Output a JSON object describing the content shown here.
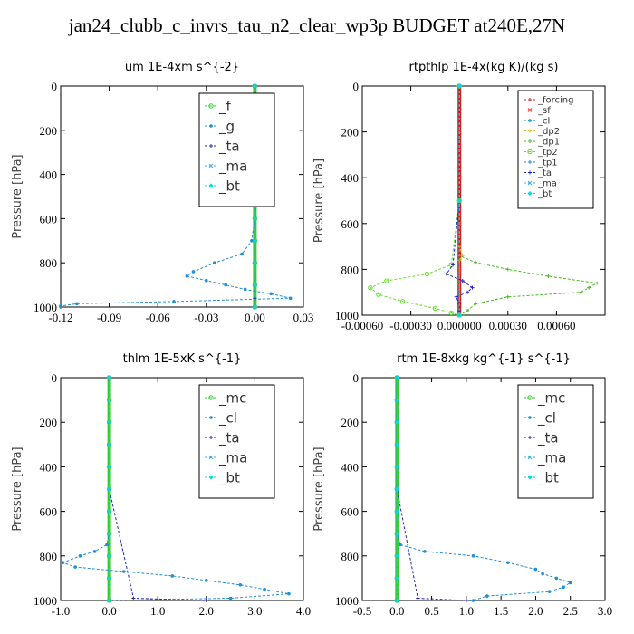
{
  "title": "jan24_clubb_c_invrs_tau_n2_clear_wp3p  BUDGET at240E,27N",
  "colors": {
    "_f": "#33cc33",
    "_g": "#1f8fd6",
    "_ta": "#2222cc",
    "_ma": "#44aadd",
    "_bt": "#00dddd",
    "_mc": "#33cc33",
    "_cl": "#1f8fd6",
    "_forcing": "#cc2222",
    "_sf": "#ee3322",
    "_dp2": "#eebb22",
    "_dp1": "#44bb22",
    "_tp2": "#66dd33",
    "_tp1": "#2288cc"
  },
  "chart_data": [
    {
      "type": "line",
      "title": "um   1E-4xm s^{-2}",
      "ylabel": "Pressure [hPa]",
      "ylim": [
        1000,
        0
      ],
      "xlim": [
        -0.12,
        0.03
      ],
      "xticks": [
        "-0.12",
        "-0.09",
        "-0.06",
        "-0.03",
        "0.00",
        "0.03"
      ],
      "xtick_values": [
        -0.12,
        -0.09,
        -0.06,
        -0.03,
        0.0,
        0.03
      ],
      "yticks": [
        0,
        200,
        400,
        600,
        800,
        1000
      ],
      "legend": [
        "_f",
        "_g",
        "_ta",
        "_ma",
        "_bt"
      ],
      "legend_position": "top-right",
      "series": [
        {
          "name": "_f",
          "pressure": [
            0,
            100,
            200,
            300,
            400,
            500,
            600,
            700,
            800,
            900,
            1000
          ],
          "values": [
            0,
            0,
            0,
            0,
            0,
            0,
            0,
            0,
            0,
            0,
            0
          ]
        },
        {
          "name": "_g",
          "pressure": [
            0,
            100,
            200,
            300,
            400,
            500,
            600,
            700,
            760,
            800,
            840,
            860,
            880,
            900,
            920,
            940,
            960,
            975,
            985,
            995,
            1000
          ],
          "values": [
            0,
            0.001,
            0,
            0.001,
            0,
            0.001,
            0,
            -0.002,
            -0.008,
            -0.025,
            -0.038,
            -0.042,
            -0.03,
            -0.018,
            -0.006,
            0.01,
            0.022,
            -0.05,
            -0.11,
            -0.12,
            -0.12
          ]
        },
        {
          "name": "_ta",
          "pressure": [
            0,
            500,
            900,
            960,
            1000
          ],
          "values": [
            0,
            0,
            0,
            0,
            0
          ]
        },
        {
          "name": "_ma",
          "pressure": [
            0,
            500,
            1000
          ],
          "values": [
            0,
            0,
            0
          ]
        },
        {
          "name": "_bt",
          "pressure": [
            0,
            100,
            200,
            300,
            400,
            500,
            600,
            700,
            800,
            900,
            1000
          ],
          "values": [
            0,
            0,
            0,
            0,
            0,
            0,
            0,
            0,
            0,
            0,
            0
          ]
        }
      ]
    },
    {
      "type": "line",
      "title": "rtpthlp   1E-4x(kg K)/(kg s)",
      "ylabel": "Pressure [hPa]",
      "ylim": [
        1000,
        0
      ],
      "xlim": [
        -0.0006,
        0.0009
      ],
      "xticks": [
        "-0.00060",
        "-0.00030",
        "0.000000",
        "0.00030",
        "0.00060"
      ],
      "xtick_values": [
        -0.0006,
        -0.0003,
        0.0,
        0.0003,
        0.0006
      ],
      "yticks": [
        0,
        200,
        400,
        600,
        800,
        1000
      ],
      "legend": [
        "_forcing",
        "_sf",
        "_cl",
        "_dp2",
        "_dp1",
        "_tp2",
        "_tp1",
        "_ta",
        "_ma",
        "_bt"
      ],
      "legend_position": "top-right",
      "series": [
        {
          "name": "_forcing",
          "pressure": [
            0,
            100,
            200,
            300,
            400,
            500,
            600,
            700,
            800,
            900,
            1000
          ],
          "values": [
            0,
            0,
            0,
            0,
            0,
            0,
            0,
            0,
            0,
            0,
            0
          ]
        },
        {
          "name": "_sf",
          "pressure": [
            0,
            200,
            400,
            600,
            800,
            1000
          ],
          "values": [
            0,
            0,
            0,
            0,
            0,
            0
          ]
        },
        {
          "name": "_cl",
          "pressure": [
            0,
            500,
            1000
          ],
          "values": [
            0,
            0,
            0
          ]
        },
        {
          "name": "_dp2",
          "pressure": [
            0,
            500,
            700,
            740,
            760,
            1000
          ],
          "values": [
            0,
            0,
            0,
            2e-05,
            0,
            0
          ]
        },
        {
          "name": "_dp1",
          "pressure": [
            0,
            500,
            740,
            770,
            800,
            830,
            860,
            880,
            900,
            920,
            950,
            980,
            1000
          ],
          "values": [
            0,
            0,
            0,
            0.0001,
            0.0003,
            0.00055,
            0.00085,
            0.0008,
            0.00075,
            0.0003,
            0.0001,
            5e-05,
            0
          ]
        },
        {
          "name": "_tp2",
          "pressure": [
            0,
            500,
            780,
            820,
            850,
            880,
            910,
            940,
            970,
            990,
            1000
          ],
          "values": [
            0,
            0,
            -5e-05,
            -0.0002,
            -0.00045,
            -0.00055,
            -0.0005,
            -0.00035,
            -0.00015,
            -5e-05,
            0
          ]
        },
        {
          "name": "_tp1",
          "pressure": [
            0,
            500,
            1000
          ],
          "values": [
            0,
            0,
            0
          ]
        },
        {
          "name": "_ta",
          "pressure": [
            0,
            500,
            780,
            820,
            850,
            880,
            900,
            920,
            950,
            980,
            1000
          ],
          "values": [
            0,
            0,
            -4e-05,
            -8e-05,
            2e-05,
            8e-05,
            5e-05,
            -2e-05,
            0,
            0,
            0
          ]
        },
        {
          "name": "_ma",
          "pressure": [
            0,
            500,
            1000
          ],
          "values": [
            0,
            0,
            0
          ]
        },
        {
          "name": "_bt",
          "pressure": [
            0,
            500,
            1000
          ],
          "values": [
            0,
            0,
            0
          ]
        }
      ]
    },
    {
      "type": "line",
      "title": "thlm   1E-5xK s^{-1}",
      "ylabel": "Pressure [hPa]",
      "ylim": [
        1000,
        0
      ],
      "xlim": [
        -1.0,
        4.0
      ],
      "xticks": [
        "-1.0",
        "0.0",
        "1.0",
        "2.0",
        "3.0",
        "4.0"
      ],
      "xtick_values": [
        -1.0,
        0.0,
        1.0,
        2.0,
        3.0,
        4.0
      ],
      "yticks": [
        0,
        200,
        400,
        600,
        800,
        1000
      ],
      "legend": [
        "_mc",
        "_cl",
        "_ta",
        "_ma",
        "_bt"
      ],
      "legend_position": "top-right",
      "series": [
        {
          "name": "_mc",
          "pressure": [
            0,
            100,
            200,
            300,
            400,
            500,
            600,
            700,
            800,
            900,
            1000
          ],
          "values": [
            0,
            0,
            0,
            0,
            0,
            0,
            0,
            0,
            0,
            0,
            0
          ]
        },
        {
          "name": "_cl",
          "pressure": [
            0,
            100,
            200,
            300,
            400,
            500,
            600,
            700,
            750,
            780,
            800,
            830,
            850,
            870,
            890,
            910,
            930,
            950,
            970,
            990,
            1000
          ],
          "values": [
            0,
            0,
            0,
            0,
            0,
            0,
            0,
            0,
            -0.05,
            -0.3,
            -0.6,
            -0.95,
            -0.7,
            0.3,
            1.3,
            2.0,
            2.7,
            3.2,
            3.7,
            2.5,
            0
          ]
        },
        {
          "name": "_ta",
          "pressure": [
            0,
            500,
            990,
            1000
          ],
          "values": [
            0,
            0,
            0.5,
            2.0
          ]
        },
        {
          "name": "_ma",
          "pressure": [
            0,
            500,
            1000
          ],
          "values": [
            0,
            0,
            0
          ]
        },
        {
          "name": "_bt",
          "pressure": [
            0,
            100,
            200,
            300,
            400,
            500,
            600,
            700,
            800,
            900,
            1000
          ],
          "values": [
            0,
            0,
            0,
            0,
            0,
            0,
            0,
            0,
            0,
            0,
            0
          ]
        }
      ]
    },
    {
      "type": "line",
      "title": "rtm   1E-8xkg kg^{-1} s^{-1}",
      "ylabel": "Pressure [hPa]",
      "ylim": [
        1000,
        0
      ],
      "xlim": [
        -0.5,
        3.0
      ],
      "xticks": [
        "-0.5",
        "0.0",
        "0.5",
        "1.0",
        "1.5",
        "2.0",
        "2.5",
        "3.0"
      ],
      "xtick_values": [
        -0.5,
        0.0,
        0.5,
        1.0,
        1.5,
        2.0,
        2.5,
        3.0
      ],
      "yticks": [
        0,
        200,
        400,
        600,
        800,
        1000
      ],
      "legend": [
        "_mc",
        "_cl",
        "_ta",
        "_ma",
        "_bt"
      ],
      "legend_position": "top-right",
      "series": [
        {
          "name": "_mc",
          "pressure": [
            0,
            100,
            200,
            300,
            400,
            500,
            600,
            700,
            800,
            900,
            1000
          ],
          "values": [
            0,
            0,
            0,
            0,
            0,
            0,
            0,
            0,
            0,
            0,
            0
          ]
        },
        {
          "name": "_cl",
          "pressure": [
            0,
            100,
            200,
            300,
            400,
            500,
            600,
            700,
            750,
            780,
            800,
            830,
            860,
            880,
            900,
            920,
            940,
            960,
            980,
            1000
          ],
          "values": [
            0,
            0,
            0,
            0,
            0,
            0,
            0,
            0,
            0.05,
            0.4,
            1.1,
            1.6,
            2.0,
            2.1,
            2.3,
            2.5,
            2.4,
            2.2,
            1.3,
            1.1
          ]
        },
        {
          "name": "_ta",
          "pressure": [
            0,
            500,
            990,
            1000
          ],
          "values": [
            0,
            0,
            0.3,
            1.0
          ]
        },
        {
          "name": "_ma",
          "pressure": [
            0,
            500,
            1000
          ],
          "values": [
            0,
            0,
            0
          ]
        },
        {
          "name": "_bt",
          "pressure": [
            0,
            100,
            200,
            300,
            400,
            500,
            600,
            700,
            800,
            900,
            1000
          ],
          "values": [
            0,
            0,
            0,
            0,
            0,
            0,
            0,
            0,
            0,
            0,
            0
          ]
        }
      ]
    }
  ]
}
